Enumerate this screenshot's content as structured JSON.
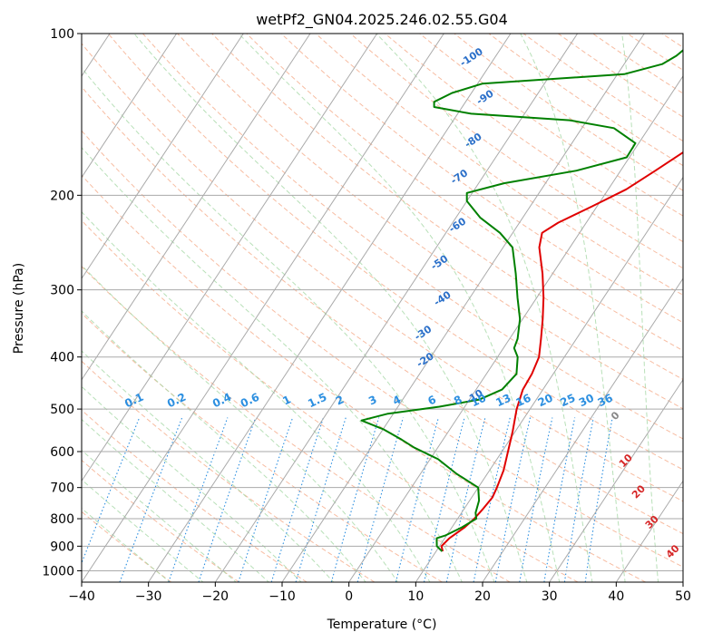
{
  "chart_data": {
    "type": "line",
    "title": "wetPf2_GN04.2025.246.02.55.G04",
    "xlabel": "Temperature (°C)",
    "ylabel": "Pressure (hPa)",
    "xlim": [
      -40,
      50
    ],
    "ylim": [
      1050,
      100
    ],
    "y_scale": "log",
    "x_ticks": [
      "−40",
      "−30",
      "−20",
      "−10",
      "0",
      "10",
      "20",
      "30",
      "40",
      "50"
    ],
    "y_ticks": [
      "100",
      "200",
      "300",
      "400",
      "500",
      "600",
      "700",
      "800",
      "900",
      "1000"
    ],
    "colors": {
      "temperature": "#e00000",
      "dewpoint": "#008000",
      "isotherm_grid": "#aaaaaa",
      "dry_adiabat": "#f4a582",
      "moist_adiabat": "#a6d8a6",
      "mixing_ratio": "#2c8fe0",
      "height_label": "#2a6fc9",
      "wetbulb_label": "#d62728"
    },
    "series": [
      {
        "values": [
          {
            "p": 920,
            "t": 11.0
          },
          {
            "p": 900,
            "t": 10.3
          },
          {
            "p": 870,
            "t": 10.7
          },
          {
            "p": 830,
            "t": 11.9
          },
          {
            "p": 800,
            "t": 12.5
          },
          {
            "p": 770,
            "t": 12.8
          },
          {
            "p": 730,
            "t": 13.1
          },
          {
            "p": 700,
            "t": 12.8
          },
          {
            "p": 650,
            "t": 12.1
          },
          {
            "p": 600,
            "t": 10.9
          },
          {
            "p": 550,
            "t": 9.6
          },
          {
            "p": 500,
            "t": 8.0
          },
          {
            "p": 460,
            "t": 7.0
          },
          {
            "p": 430,
            "t": 6.8
          },
          {
            "p": 400,
            "t": 6.2
          },
          {
            "p": 370,
            "t": 4.7
          },
          {
            "p": 340,
            "t": 3.0
          },
          {
            "p": 310,
            "t": 1.0
          },
          {
            "p": 280,
            "t": -1.5
          },
          {
            "p": 250,
            "t": -4.6
          },
          {
            "p": 235,
            "t": -5.6
          },
          {
            "p": 225,
            "t": -4.2
          },
          {
            "p": 210,
            "t": -0.8
          },
          {
            "p": 195,
            "t": 2.7
          },
          {
            "p": 180,
            "t": 5.2
          },
          {
            "p": 165,
            "t": 7.8
          },
          {
            "p": 150,
            "t": 12.2
          },
          {
            "p": 140,
            "t": 14.6
          },
          {
            "p": 130,
            "t": 16.1
          },
          {
            "p": 120,
            "t": 17.2
          },
          {
            "p": 112,
            "t": 19.0
          },
          {
            "p": 104,
            "t": 20.7
          },
          {
            "p": 100,
            "t": 21.3
          }
        ]
      },
      {
        "values": [
          {
            "p": 920,
            "t": 10.9
          },
          {
            "p": 900,
            "t": 9.6
          },
          {
            "p": 870,
            "t": 8.8
          },
          {
            "p": 860,
            "t": 9.8
          },
          {
            "p": 830,
            "t": 11.5
          },
          {
            "p": 800,
            "t": 12.8
          },
          {
            "p": 780,
            "t": 12.1
          },
          {
            "p": 740,
            "t": 11.4
          },
          {
            "p": 700,
            "t": 10.0
          },
          {
            "p": 660,
            "t": 5.4
          },
          {
            "p": 620,
            "t": 1.2
          },
          {
            "p": 590,
            "t": -3.5
          },
          {
            "p": 570,
            "t": -6.2
          },
          {
            "p": 545,
            "t": -10.0
          },
          {
            "p": 525,
            "t": -14.1
          },
          {
            "p": 510,
            "t": -10.8
          },
          {
            "p": 495,
            "t": -3.8
          },
          {
            "p": 480,
            "t": 1.5
          },
          {
            "p": 460,
            "t": 3.9
          },
          {
            "p": 430,
            "t": 4.5
          },
          {
            "p": 400,
            "t": 3.0
          },
          {
            "p": 385,
            "t": 1.6
          },
          {
            "p": 370,
            "t": 1.2
          },
          {
            "p": 340,
            "t": -0.4
          },
          {
            "p": 310,
            "t": -2.9
          },
          {
            "p": 280,
            "t": -5.5
          },
          {
            "p": 250,
            "t": -8.6
          },
          {
            "p": 235,
            "t": -11.9
          },
          {
            "p": 220,
            "t": -16.4
          },
          {
            "p": 205,
            "t": -20.0
          },
          {
            "p": 198,
            "t": -20.8
          },
          {
            "p": 190,
            "t": -16.2
          },
          {
            "p": 180,
            "t": -6.6
          },
          {
            "p": 170,
            "t": -0.4
          },
          {
            "p": 160,
            "t": -0.5
          },
          {
            "p": 150,
            "t": -5.2
          },
          {
            "p": 145,
            "t": -12.6
          },
          {
            "p": 141,
            "t": -28.0
          },
          {
            "p": 137,
            "t": -34.2
          },
          {
            "p": 134,
            "t": -34.7
          },
          {
            "p": 129,
            "t": -32.9
          },
          {
            "p": 124,
            "t": -29.3
          },
          {
            "p": 119,
            "t": -9.0
          },
          {
            "p": 114,
            "t": -4.3
          },
          {
            "p": 110,
            "t": -3.0
          },
          {
            "p": 106,
            "t": -2.3
          },
          {
            "p": 100,
            "t": -1.0
          }
        ]
      }
    ],
    "height_labels": [
      {
        "text": "-100",
        "p": 112,
        "t": -33
      },
      {
        "text": "-90",
        "p": 133,
        "t": -27
      },
      {
        "text": "-80",
        "p": 160,
        "t": -24.5
      },
      {
        "text": "-70",
        "p": 187,
        "t": -23
      },
      {
        "text": "-60",
        "p": 230,
        "t": -18.5
      },
      {
        "text": "-50",
        "p": 270,
        "t": -17.5
      },
      {
        "text": "-40",
        "p": 315,
        "t": -13.5
      },
      {
        "text": "-30",
        "p": 365,
        "t": -13
      },
      {
        "text": "-20",
        "p": 410,
        "t": -10
      },
      {
        "text": "-10",
        "p": 480,
        "t": 1
      }
    ],
    "mixing_ratio_labels": [
      "0.1",
      "0.2",
      "0.4",
      "0.6",
      "1",
      "1.5",
      "2",
      "3",
      "4",
      "6",
      "8",
      "10",
      "13",
      "16",
      "20",
      "25",
      "30",
      "36"
    ],
    "wetbulb_labels": [
      {
        "text": "0",
        "p": 520,
        "t": 24
      },
      {
        "text": "10",
        "p": 630,
        "t": 30
      },
      {
        "text": "20",
        "p": 720,
        "t": 35
      },
      {
        "text": "30",
        "p": 820,
        "t": 40
      },
      {
        "text": "40",
        "p": 930,
        "t": 46
      }
    ]
  }
}
